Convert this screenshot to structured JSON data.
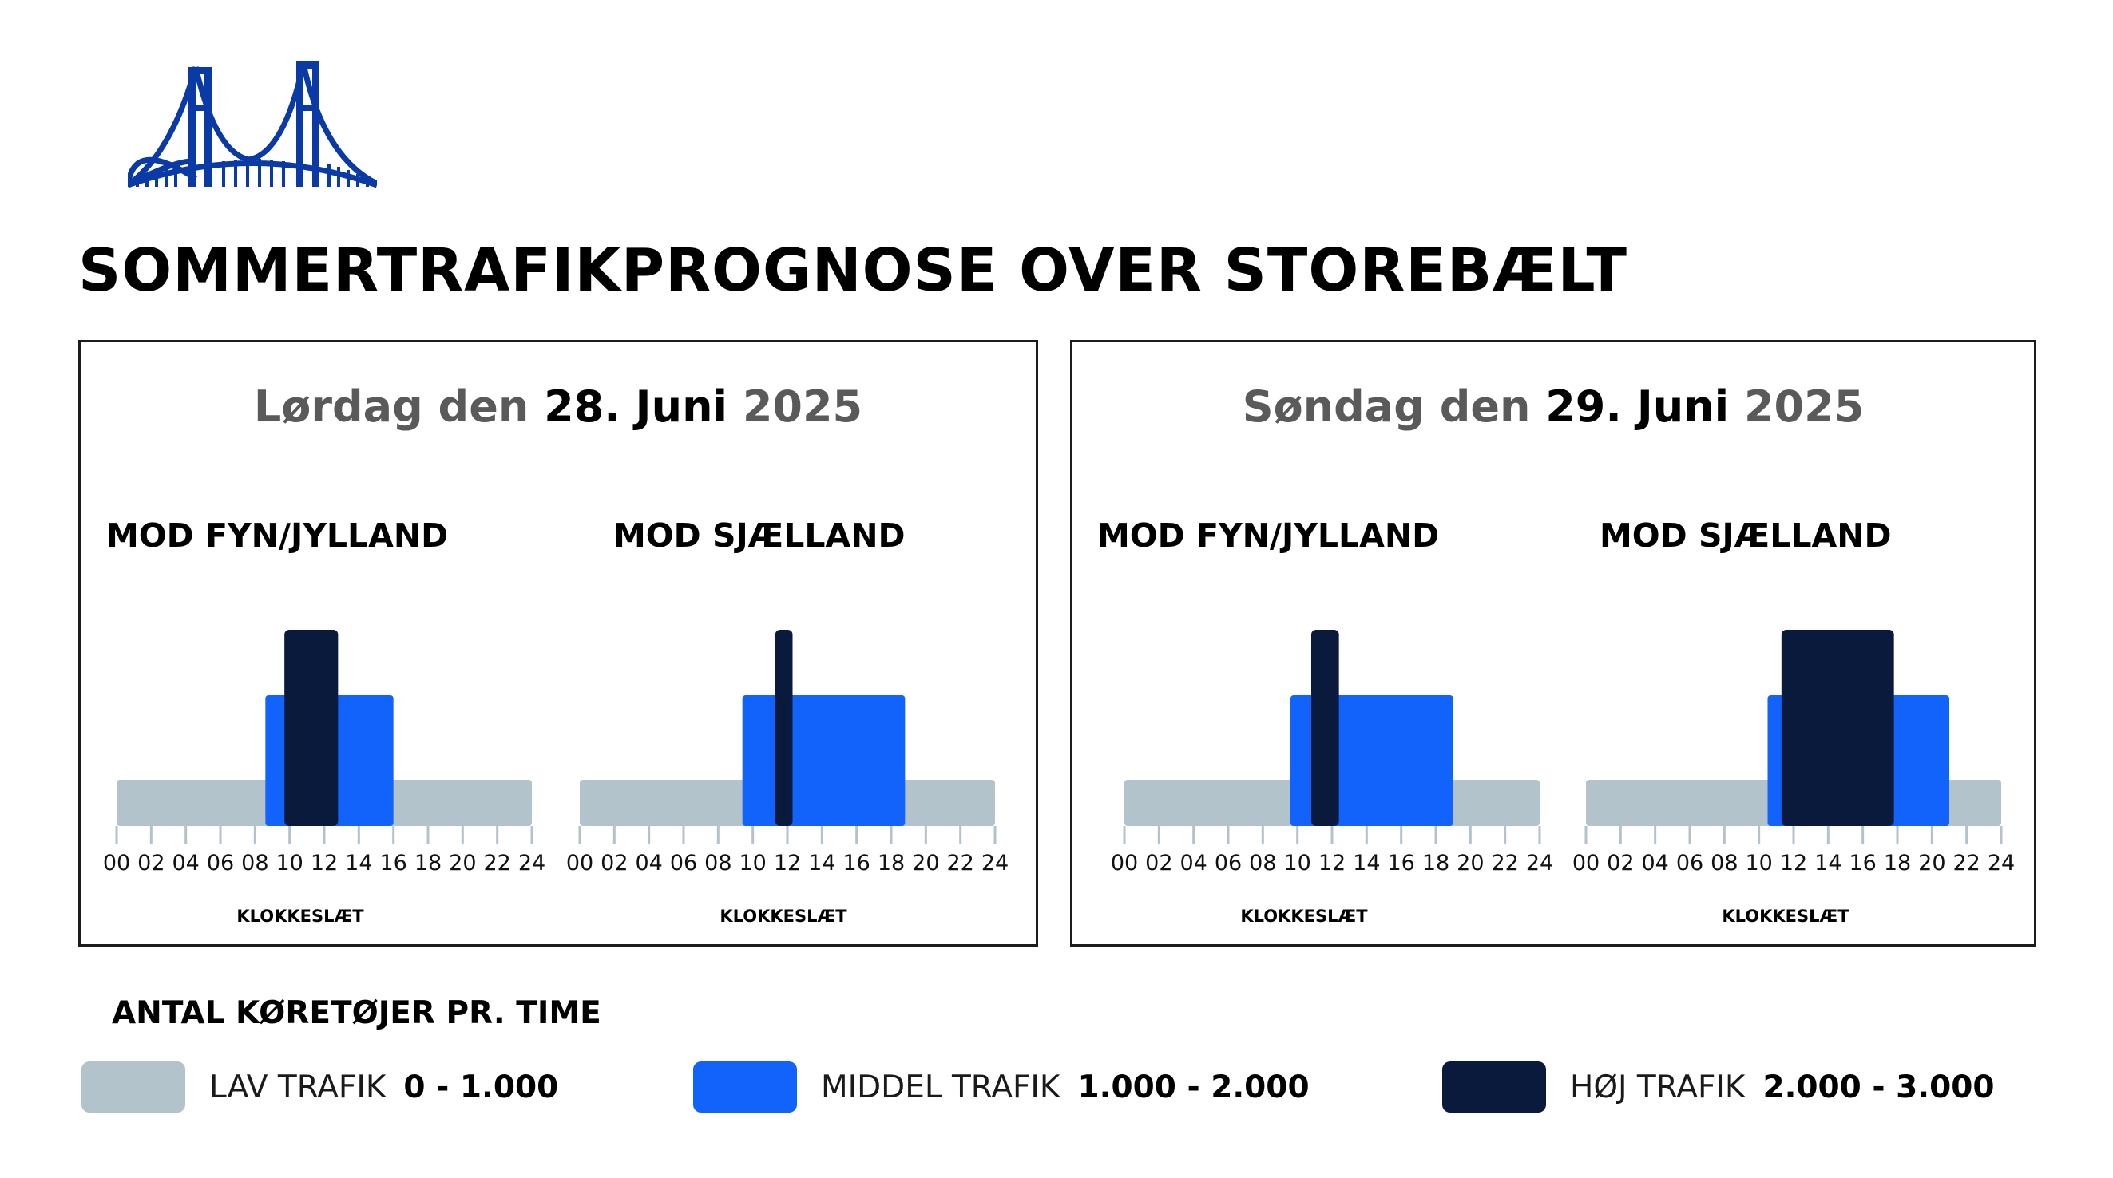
{
  "title": "SOMMERTRAFIKPROGNOSE OVER STOREBÆLT",
  "logo": {
    "icon": "bridge-logo-icon",
    "color": "#0a3aa6"
  },
  "colors": {
    "low": "#b3c3cc",
    "medium": "#1263fb",
    "high": "#0a1a3d",
    "tick": "#b3c3cc"
  },
  "panels": [
    {
      "day_prefix": "Lørdag den ",
      "date": "28. Juni",
      "year": " 2025"
    },
    {
      "day_prefix": "Søndag den ",
      "date": "29. Juni",
      "year": " 2025"
    }
  ],
  "directions": {
    "fyn": "MOD FYN/JYLLAND",
    "sjaelland": "MOD SJÆLLAND"
  },
  "axis_label": "KLOKKESLÆT",
  "legend": {
    "heading": "ANTAL KØRETØJER PR. TIME",
    "items": [
      {
        "label": "LAV TRAFIK",
        "range": "0 - 1.000"
      },
      {
        "label": "MIDDEL TRAFIK",
        "range": "1.000 - 2.000"
      },
      {
        "label": "HØJ TRAFIK",
        "range": "2.000 - 3.000"
      }
    ]
  },
  "chart_data": [
    {
      "type": "bar",
      "title": "Lørdag den 28. Juni 2025 – MOD FYN/JYLLAND",
      "xlabel": "KLOKKESLÆT",
      "x_ticks": [
        "00",
        "02",
        "04",
        "06",
        "08",
        "10",
        "12",
        "14",
        "16",
        "18",
        "20",
        "22",
        "24"
      ],
      "xlim": [
        0,
        24
      ],
      "levels": [
        "LAV TRAFIK",
        "MIDDEL TRAFIK",
        "HØJ TRAFIK"
      ],
      "segments": [
        {
          "from": 0,
          "to": 24,
          "level": 1
        },
        {
          "from": 8.6,
          "to": 16,
          "level": 2
        },
        {
          "from": 9.7,
          "to": 12.8,
          "level": 3
        }
      ]
    },
    {
      "type": "bar",
      "title": "Lørdag den 28. Juni 2025 – MOD SJÆLLAND",
      "xlabel": "KLOKKESLÆT",
      "x_ticks": [
        "00",
        "02",
        "04",
        "06",
        "08",
        "10",
        "12",
        "14",
        "16",
        "18",
        "20",
        "22",
        "24"
      ],
      "xlim": [
        0,
        24
      ],
      "levels": [
        "LAV TRAFIK",
        "MIDDEL TRAFIK",
        "HØJ TRAFIK"
      ],
      "segments": [
        {
          "from": 0,
          "to": 24,
          "level": 1
        },
        {
          "from": 9.4,
          "to": 18.8,
          "level": 2
        },
        {
          "from": 11.3,
          "to": 12.3,
          "level": 3
        }
      ]
    },
    {
      "type": "bar",
      "title": "Søndag den 29. Juni 2025 – MOD FYN/JYLLAND",
      "xlabel": "KLOKKESLÆT",
      "x_ticks": [
        "00",
        "02",
        "04",
        "06",
        "08",
        "10",
        "12",
        "14",
        "16",
        "18",
        "20",
        "22",
        "24"
      ],
      "xlim": [
        0,
        24
      ],
      "levels": [
        "LAV TRAFIK",
        "MIDDEL TRAFIK",
        "HØJ TRAFIK"
      ],
      "segments": [
        {
          "from": 0,
          "to": 24,
          "level": 1
        },
        {
          "from": 9.6,
          "to": 19,
          "level": 2
        },
        {
          "from": 10.8,
          "to": 12.4,
          "level": 3
        }
      ]
    },
    {
      "type": "bar",
      "title": "Søndag den 29. Juni 2025 – MOD SJÆLLAND",
      "xlabel": "KLOKKESLÆT",
      "x_ticks": [
        "00",
        "02",
        "04",
        "06",
        "08",
        "10",
        "12",
        "14",
        "16",
        "18",
        "20",
        "22",
        "24"
      ],
      "xlim": [
        0,
        24
      ],
      "levels": [
        "LAV TRAFIK",
        "MIDDEL TRAFIK",
        "HØJ TRAFIK"
      ],
      "segments": [
        {
          "from": 0,
          "to": 24,
          "level": 1
        },
        {
          "from": 10.5,
          "to": 21,
          "level": 2
        },
        {
          "from": 11.3,
          "to": 17.8,
          "level": 3
        }
      ]
    }
  ]
}
